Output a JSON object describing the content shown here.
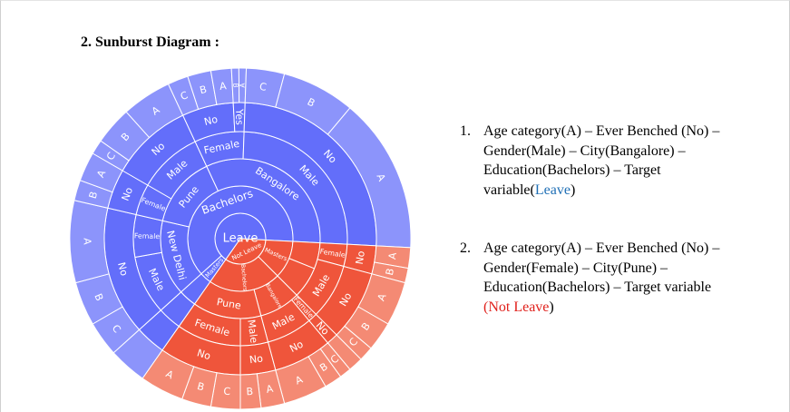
{
  "header": {
    "title": "2. Sunburst Diagram :"
  },
  "sunburst": {
    "labels": [
      "Leave",
      "Not Leave",
      "Bachelors",
      "Masters",
      "New Delhi",
      "Pune",
      "Bangalore",
      "Male",
      "Female",
      "Female",
      "Male",
      "Female",
      "Male",
      "No",
      "No",
      "No",
      "No",
      "Yes",
      "No",
      "C",
      "B",
      "A",
      "B",
      "A",
      "C",
      "B",
      "A",
      "C",
      "B",
      "A",
      "B",
      "A",
      "C",
      "B",
      "A",
      "Masters",
      "Bachelors",
      "Bangalore",
      "Pune",
      "Female",
      "Male",
      "Female",
      "Male",
      "Male",
      "Female",
      "No",
      "No",
      "No",
      "No",
      "No",
      "No",
      "A",
      "B",
      "A",
      "B",
      "C",
      "C",
      "B",
      "A",
      "C",
      "B",
      "A",
      "A",
      "B"
    ]
  },
  "list": [
    {
      "marker": "1.",
      "text": "Age category(A) – Ever Benched (No) – Gender(Male) – City(Bangalore) – Education(Bachelors) – Target variable(",
      "target": "Leave",
      "close": ")"
    },
    {
      "marker": "2.",
      "text": "Age category(A) – Ever Benched (No) – Gender(Female) – City(Pune) – Education(Bachelors) – Target variable ",
      "target": "(Not Leave",
      "close": ")"
    }
  ]
}
